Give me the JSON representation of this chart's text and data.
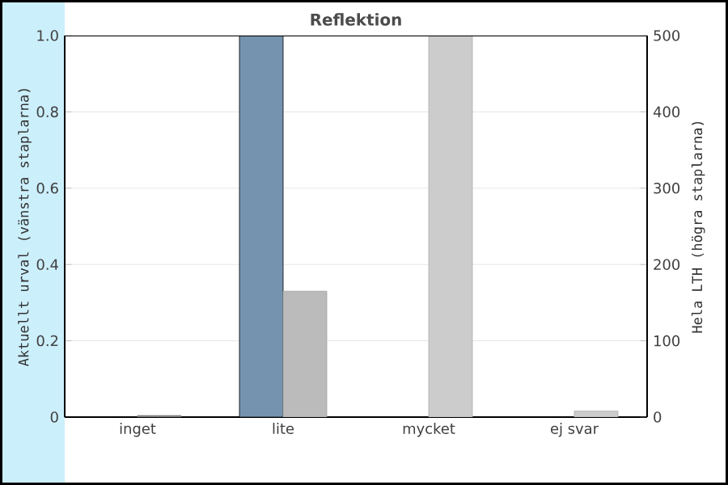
{
  "chart_data": {
    "type": "bar",
    "title": "Reflektion",
    "categories": [
      "inget",
      "lite",
      "mycket",
      "ej svar"
    ],
    "ylabel": "Aktuellt urval (vänstra staplarna)",
    "y2label": "Hela LTH (högra staplarna)",
    "ylim": [
      0,
      1
    ],
    "yticks": [
      0,
      0.2,
      0.4,
      0.6,
      0.8,
      {
        "value": 1,
        "label": "1.0"
      }
    ],
    "y2lim": [
      0,
      500
    ],
    "y2ticks": [
      0,
      100,
      200,
      300,
      400,
      500
    ],
    "grid": "y",
    "series": [
      {
        "color": "#7593ae",
        "values": [
          0,
          1,
          0,
          0
        ]
      },
      {
        "axis": "y2",
        "colors": [
          "#888888",
          "#bbbbbb",
          "#cccccc",
          "#cccccc"
        ],
        "values": [
          2,
          165,
          500,
          8
        ]
      }
    ]
  }
}
